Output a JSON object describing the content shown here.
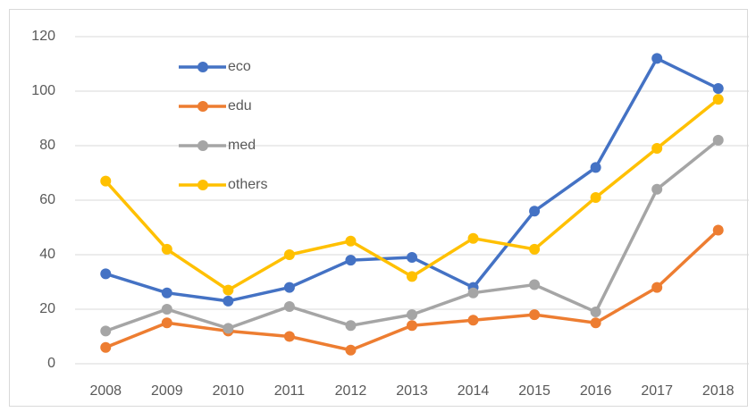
{
  "chart_data": {
    "type": "line",
    "categories": [
      "2008",
      "2009",
      "2010",
      "2011",
      "2012",
      "2013",
      "2014",
      "2015",
      "2016",
      "2017",
      "2018"
    ],
    "series": [
      {
        "name": "eco",
        "color": "#4472c4",
        "values": [
          33,
          26,
          23,
          28,
          38,
          39,
          28,
          56,
          72,
          112,
          101
        ]
      },
      {
        "name": "edu",
        "color": "#ed7d31",
        "values": [
          6,
          15,
          12,
          10,
          5,
          14,
          16,
          18,
          15,
          28,
          49
        ]
      },
      {
        "name": "med",
        "color": "#a5a5a5",
        "values": [
          12,
          20,
          13,
          21,
          14,
          18,
          26,
          29,
          19,
          64,
          82
        ]
      },
      {
        "name": "others",
        "color": "#ffc000",
        "values": [
          67,
          42,
          27,
          40,
          45,
          32,
          46,
          42,
          61,
          79,
          97
        ]
      }
    ],
    "ylim": [
      0,
      120
    ],
    "yticks": [
      0,
      20,
      40,
      60,
      80,
      100,
      120
    ],
    "grid": true,
    "legend": "top-left"
  }
}
